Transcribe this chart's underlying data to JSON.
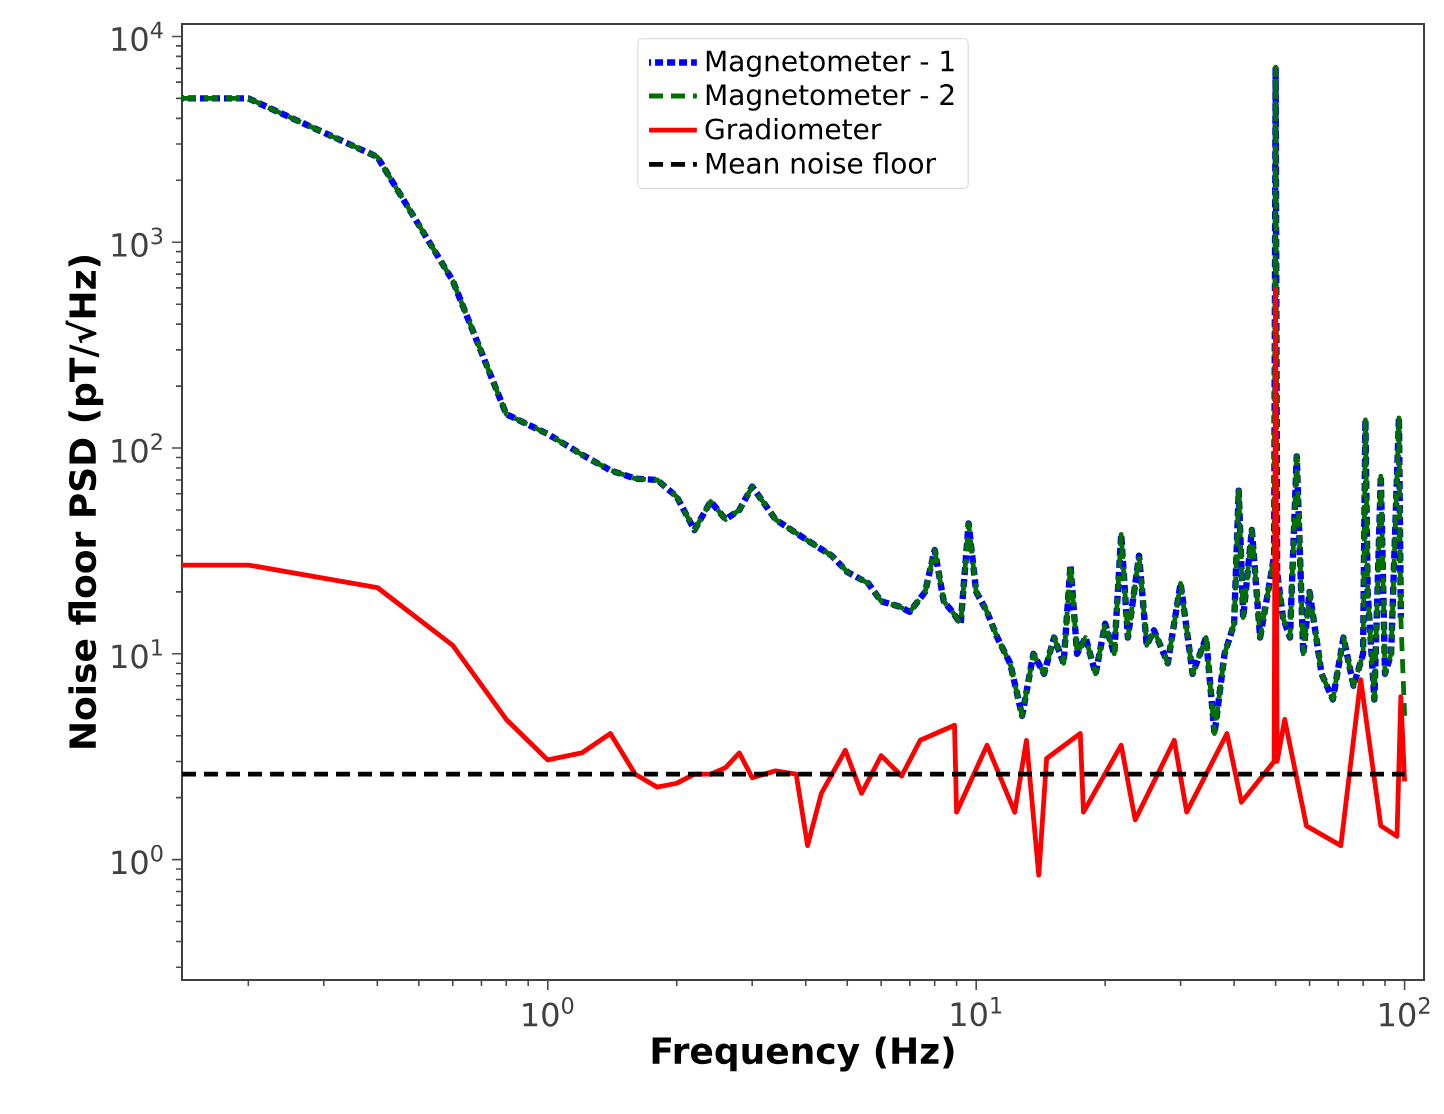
{
  "chart_data": {
    "type": "line",
    "xlabel": "Frequency (Hz)",
    "ylabel": "Noise floor PSD (pT/√Hz)",
    "log": "xy",
    "legend": "top",
    "grid": false,
    "xlim": [
      0.14,
      111
    ],
    "ylim": [
      0.26,
      11500
    ],
    "xticks": [
      {
        "value": 1,
        "label": "10$^{0}$"
      },
      {
        "value": 10,
        "label": "10$^{1}$"
      },
      {
        "value": 100,
        "label": "10$^{2}$"
      }
    ],
    "yticks": [
      {
        "value": 1,
        "label": "10$^{0}$"
      },
      {
        "value": 10,
        "label": "10$^{1}$"
      },
      {
        "value": 100,
        "label": "10$^{2}$"
      },
      {
        "value": 1000,
        "label": "10$^{3}$"
      },
      {
        "value": 10000,
        "label": "10$^{4}$"
      }
    ],
    "series": [
      {
        "name": "Magnetometer - 1",
        "color": "#0000ff",
        "line_style": "dashed",
        "x": [
          0.14,
          0.2,
          0.4,
          0.6,
          0.8,
          1.0,
          1.2,
          1.4,
          1.6,
          1.8,
          2.0,
          2.2,
          2.4,
          2.6,
          2.8,
          3.0,
          3.4,
          4.0,
          4.6,
          5.0,
          5.6,
          6.0,
          6.6,
          7.0,
          7.6,
          8.0,
          8.4,
          8.8,
          9.2,
          9.6,
          10.0,
          10.6,
          11.2,
          12.0,
          12.8,
          13.6,
          14.4,
          15.2,
          16.0,
          16.6,
          17.2,
          18.0,
          19.0,
          20.0,
          21.0,
          21.8,
          22.6,
          24.0,
          25.0,
          26.0,
          28.0,
          30.0,
          32.0,
          34.4,
          36.0,
          38.0,
          40.0,
          41.0,
          42.0,
          44.0,
          46.0,
          48.0,
          49.6,
          50.0,
          50.4,
          52.0,
          54.0,
          56.0,
          58.0,
          60.0,
          64.0,
          68.0,
          72.0,
          76.0,
          80.0,
          81.0,
          82.0,
          85.0,
          88.0,
          90.0,
          93.0,
          97.0,
          98.0
        ],
        "values": [
          5000,
          5000,
          2600,
          650,
          146,
          117,
          93,
          78,
          71,
          70,
          58,
          40,
          55,
          45,
          50,
          65,
          45,
          36,
          30,
          25,
          22,
          18,
          17,
          16,
          20,
          32,
          18,
          16,
          14,
          43,
          20,
          16,
          12,
          9,
          5,
          10,
          8,
          12,
          9,
          27,
          10,
          12,
          8,
          14,
          10,
          38,
          12,
          30,
          11,
          13,
          9,
          22,
          8,
          12,
          4.1,
          10,
          14,
          62,
          15,
          40,
          12,
          20,
          30,
          7100,
          25,
          15,
          12,
          91,
          10,
          20,
          8,
          6,
          12,
          7,
          10,
          137,
          20,
          6,
          73,
          8,
          10,
          140,
          15
        ]
      },
      {
        "name": "Magnetometer - 2",
        "color": "#007000",
        "line_style": "dashed",
        "x": [
          0.14,
          0.2,
          0.4,
          0.6,
          0.8,
          1.0,
          1.2,
          1.4,
          1.6,
          1.8,
          2.0,
          2.2,
          2.4,
          2.6,
          2.8,
          3.0,
          3.4,
          4.0,
          4.6,
          5.0,
          5.6,
          6.0,
          6.6,
          7.0,
          7.6,
          8.0,
          8.4,
          8.8,
          9.2,
          9.6,
          10.0,
          10.6,
          11.2,
          12.0,
          12.8,
          13.6,
          14.4,
          15.2,
          16.0,
          16.6,
          17.2,
          18.0,
          19.0,
          20.0,
          21.0,
          21.8,
          22.6,
          24.0,
          25.0,
          26.0,
          28.0,
          30.0,
          32.0,
          34.4,
          36.0,
          38.0,
          40.0,
          41.0,
          42.0,
          44.0,
          46.0,
          48.0,
          49.6,
          50.0,
          50.4,
          52.0,
          54.0,
          56.0,
          58.0,
          60.0,
          64.0,
          68.0,
          72.0,
          76.0,
          80.0,
          81.0,
          82.0,
          85.0,
          88.0,
          90.0,
          93.0,
          97.0,
          98.0,
          100.0
        ],
        "values": [
          5000,
          5000,
          2600,
          650,
          146,
          117,
          93,
          78,
          71,
          70,
          58,
          40,
          55,
          45,
          50,
          65,
          45,
          36,
          30,
          25,
          22,
          18,
          17,
          16,
          20,
          32,
          18,
          16,
          14,
          43,
          20,
          16,
          12,
          9,
          5,
          10,
          8,
          12,
          9,
          27,
          10,
          12,
          8,
          14,
          10,
          38,
          12,
          30,
          11,
          13,
          9,
          22,
          8,
          12,
          4.1,
          10,
          14,
          62,
          15,
          40,
          12,
          20,
          30,
          7100,
          25,
          15,
          12,
          91,
          10,
          20,
          8,
          6,
          12,
          7,
          10,
          137,
          20,
          6,
          73,
          8,
          10,
          140,
          15,
          5
        ]
      },
      {
        "name": "Gradiometer",
        "color": "#ff0000",
        "line_style": "solid",
        "x": [
          0.14,
          0.2,
          0.4,
          0.6,
          0.8,
          1.0,
          1.2,
          1.4,
          1.6,
          1.8,
          2.0,
          2.2,
          2.4,
          2.6,
          2.8,
          3.0,
          3.4,
          3.8,
          4.04,
          4.35,
          4.95,
          5.4,
          6.0,
          6.7,
          7.4,
          8.9,
          9.0,
          10.6,
          12.3,
          13.1,
          14.0,
          14.6,
          17.5,
          17.8,
          21.8,
          23.5,
          29.0,
          31.0,
          38.5,
          41.6,
          49.6,
          50.0,
          50.4,
          52.5,
          59.0,
          71.0,
          79.0,
          88.0,
          96.0,
          98.0,
          100.0
        ],
        "values": [
          27,
          27,
          21,
          11,
          4.8,
          3.05,
          3.3,
          4.1,
          2.6,
          2.25,
          2.35,
          2.6,
          2.6,
          2.8,
          3.3,
          2.5,
          2.7,
          2.6,
          1.17,
          2.1,
          3.4,
          2.1,
          3.2,
          2.55,
          3.8,
          4.5,
          1.7,
          3.6,
          1.7,
          3.8,
          0.84,
          3.1,
          4.1,
          1.7,
          3.6,
          1.56,
          3.8,
          1.7,
          4.1,
          1.9,
          3,
          590,
          3,
          4.8,
          1.46,
          1.17,
          7.5,
          1.46,
          1.3,
          6.2,
          2.4
        ]
      },
      {
        "name": "Mean noise floor",
        "color": "#000000",
        "line_style": "dashed",
        "x": [
          0.14,
          100
        ],
        "values": [
          2.6,
          2.6
        ]
      }
    ]
  }
}
